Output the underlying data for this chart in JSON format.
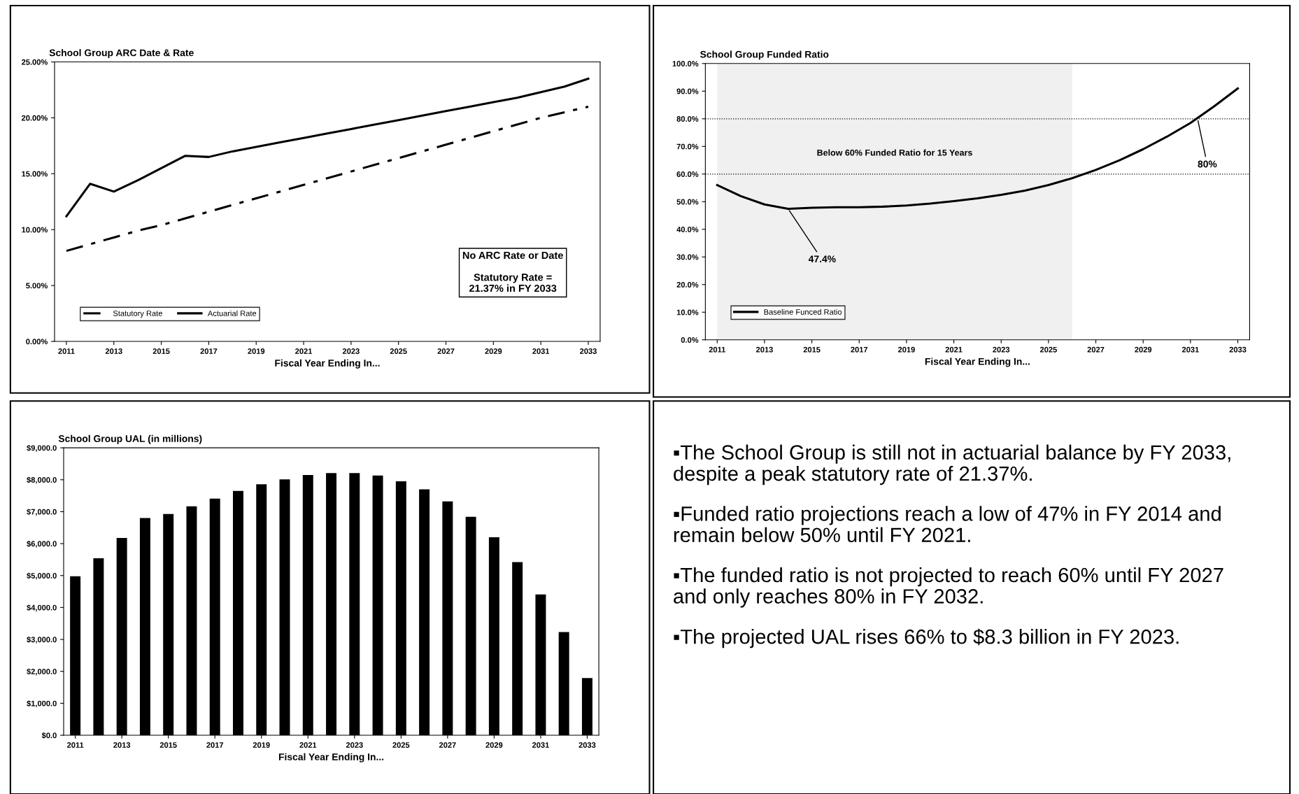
{
  "chart_data": [
    {
      "type": "line",
      "title": "School Group ARC Date & Rate",
      "xlabel": "Fiscal Year Ending In...",
      "x": [
        2011,
        2012,
        2013,
        2014,
        2015,
        2016,
        2017,
        2018,
        2019,
        2020,
        2021,
        2022,
        2023,
        2024,
        2025,
        2026,
        2027,
        2028,
        2029,
        2030,
        2031,
        2032,
        2033
      ],
      "xlim": [
        2010.5,
        2033.5
      ],
      "xticks": [
        2011,
        2013,
        2015,
        2017,
        2019,
        2021,
        2023,
        2025,
        2027,
        2029,
        2031,
        2033
      ],
      "series": [
        {
          "name": "Statutory Rate",
          "color": "#000000",
          "line_style": "dashdot",
          "values": [
            8.1,
            8.7,
            9.3,
            9.9,
            10.4,
            11.0,
            11.6,
            12.2,
            12.8,
            13.4,
            14.0,
            14.6,
            15.2,
            15.8,
            16.4,
            17.0,
            17.6,
            18.2,
            18.8,
            19.4,
            20.0,
            20.5,
            21.0
          ]
        },
        {
          "name": "Actuarial Rate",
          "color": "#000000",
          "line_style": "solid",
          "values": [
            11.2,
            14.1,
            13.4,
            14.4,
            15.5,
            16.6,
            16.5,
            17.0,
            17.4,
            17.8,
            18.2,
            18.6,
            19.0,
            19.4,
            19.8,
            20.2,
            20.6,
            21.0,
            21.4,
            21.8,
            22.3,
            22.8,
            23.5
          ]
        }
      ],
      "ylim": [
        0,
        25
      ],
      "yticks": [
        {
          "value": 0,
          "label": "0.00%"
        },
        {
          "value": 5,
          "label": "5.00%"
        },
        {
          "value": 10,
          "label": "10.00%"
        },
        {
          "value": 15,
          "label": "15.00%"
        },
        {
          "value": 20,
          "label": "20.00%"
        },
        {
          "value": 25,
          "label": "25.00%"
        }
      ],
      "grid": false,
      "legend": "bottom left",
      "marker": "none",
      "annotations": [
        "No ARC Rate or Date\n\nStatutory Rate =\n21.37% in FY 2033"
      ]
    },
    {
      "type": "line",
      "title": "School Group Funded Ratio",
      "xlabel": "Fiscal Year Ending In...",
      "x": [
        2011,
        2012,
        2013,
        2014,
        2015,
        2016,
        2017,
        2018,
        2019,
        2020,
        2021,
        2022,
        2023,
        2024,
        2025,
        2026,
        2027,
        2028,
        2029,
        2030,
        2031,
        2032,
        2033
      ],
      "xlim": [
        2010.5,
        2033.5
      ],
      "xticks": [
        2011,
        2013,
        2015,
        2017,
        2019,
        2021,
        2023,
        2025,
        2027,
        2029,
        2031,
        2033
      ],
      "series": [
        {
          "name": "Baseline Funced Ratio",
          "color": "#000000",
          "line_style": "solid",
          "values": [
            56.0,
            52.0,
            49.0,
            47.4,
            47.8,
            48.0,
            48.0,
            48.2,
            48.6,
            49.3,
            50.2,
            51.2,
            52.5,
            54.0,
            56.0,
            58.5,
            61.5,
            65.0,
            69.0,
            73.5,
            78.5,
            84.5,
            91.0
          ]
        }
      ],
      "ylim": [
        0,
        100
      ],
      "yticks": [
        {
          "value": 0,
          "label": "0.0%"
        },
        {
          "value": 10,
          "label": "10.0%"
        },
        {
          "value": 20,
          "label": "20.0%"
        },
        {
          "value": 30,
          "label": "30.0%"
        },
        {
          "value": 40,
          "label": "40.0%"
        },
        {
          "value": 50,
          "label": "50.0%"
        },
        {
          "value": 60,
          "label": "60.0%"
        },
        {
          "value": 70,
          "label": "70.0%"
        },
        {
          "value": 80,
          "label": "80.0%"
        },
        {
          "value": 90,
          "label": "90.0%"
        },
        {
          "value": 100,
          "label": "100.0%"
        }
      ],
      "grid": false,
      "legend": "bottom left",
      "marker": "none",
      "ref_lines": [
        {
          "axis": "y",
          "value": 60,
          "line_style": "dotted"
        },
        {
          "axis": "y",
          "value": 80,
          "line_style": "dotted"
        }
      ],
      "bands": [
        {
          "axis": "x",
          "from": 2011,
          "to": 2026,
          "label": "Below 60% Funded Ratio for 15 Years"
        }
      ],
      "annotations": [
        {
          "text": "47.4%",
          "x": 2014,
          "y": 47.4
        },
        {
          "text": "80%",
          "x": 2031.3,
          "y": 80
        }
      ]
    },
    {
      "type": "bar",
      "title": "School Group UAL (in millions)",
      "xlabel": "Fiscal Year Ending In...",
      "x": [
        2011,
        2012,
        2013,
        2014,
        2015,
        2016,
        2017,
        2018,
        2019,
        2020,
        2021,
        2022,
        2023,
        2024,
        2025,
        2026,
        2027,
        2028,
        2029,
        2030,
        2031,
        2032,
        2033
      ],
      "xlim": [
        2010.5,
        2033.5
      ],
      "xticks": [
        2011,
        2013,
        2015,
        2017,
        2019,
        2021,
        2023,
        2025,
        2027,
        2029,
        2031,
        2033
      ],
      "values": [
        4980,
        5540,
        6180,
        6800,
        6930,
        7170,
        7410,
        7650,
        7860,
        8010,
        8150,
        8210,
        8210,
        8130,
        7950,
        7700,
        7320,
        6840,
        6200,
        5420,
        4410,
        3230,
        1790
      ],
      "color": "#000000",
      "ylim": [
        0,
        9000
      ],
      "yticks": [
        {
          "value": 0,
          "label": "$0.0"
        },
        {
          "value": 1000,
          "label": "$1,000.0"
        },
        {
          "value": 2000,
          "label": "$2,000.0"
        },
        {
          "value": 3000,
          "label": "$3,000.0"
        },
        {
          "value": 4000,
          "label": "$4,000.0"
        },
        {
          "value": 5000,
          "label": "$5,000.0"
        },
        {
          "value": 6000,
          "label": "$6,000.0"
        },
        {
          "value": 7000,
          "label": "$7,000.0"
        },
        {
          "value": 8000,
          "label": "$8,000.0"
        },
        {
          "value": 9000,
          "label": "$9,000.0"
        }
      ],
      "grid": false
    },
    {
      "type": "other",
      "annotations": [
        "▪The School Group is still not in actuarial balance by FY 2033, despite a peak statutory rate of 21.37%.",
        "▪Funded ratio projections reach a low of 47% in FY 2014 and remain below 50% until FY 2021.",
        "▪The funded ratio is not projected to reach 60% until FY 2027 and only reaches 80% in FY 2032.",
        "▪The projected UAL rises 66% to $8.3 billion in FY 2023."
      ]
    }
  ]
}
